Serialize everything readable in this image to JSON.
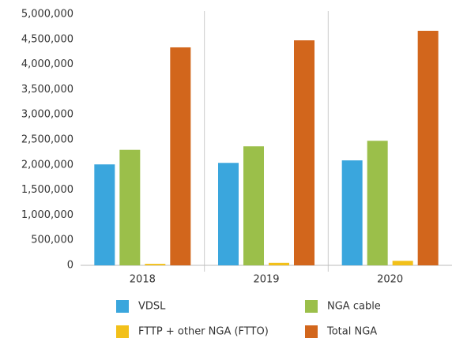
{
  "chart_data": {
    "type": "bar",
    "categories": [
      "2018",
      "2019",
      "2020"
    ],
    "series": [
      {
        "name": "VDSL",
        "color": "#3aa6dd",
        "values": [
          2010000,
          2040000,
          2090000
        ]
      },
      {
        "name": "NGA cable",
        "color": "#9bbf4a",
        "values": [
          2300000,
          2370000,
          2480000
        ]
      },
      {
        "name": "FTTP + other NGA (FTTO)",
        "color": "#f2c01a",
        "values": [
          30000,
          50000,
          90000
        ]
      },
      {
        "name": "Total NGA",
        "color": "#d2661c",
        "values": [
          4340000,
          4480000,
          4670000
        ]
      }
    ],
    "ylim": [
      0,
      5000000
    ],
    "yticks": [
      0,
      {
        "value": 500000,
        "label": "500,000"
      },
      {
        "value": 1000000,
        "label": "1,000,000"
      },
      {
        "value": 1500000,
        "label": "1,500,000"
      },
      {
        "value": 2000000,
        "label": "2,000,000"
      },
      {
        "value": 2500000,
        "label": "2,500,000"
      },
      {
        "value": 3000000,
        "label": "3,000,000"
      },
      {
        "value": 3500000,
        "label": "3,500,000"
      },
      {
        "value": 4000000,
        "label": "4,000,000"
      },
      {
        "value": 4500000,
        "label": "4,500,000"
      },
      {
        "value": 5000000,
        "label": "5,000,000"
      }
    ]
  }
}
